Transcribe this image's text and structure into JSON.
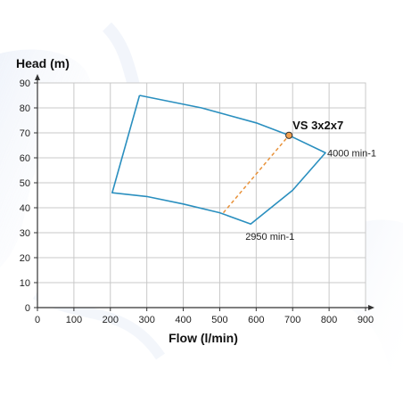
{
  "chart_data": {
    "type": "line",
    "xlabel": "Flow (l/min)",
    "ylabel": "Head (m)",
    "xlim": [
      0,
      900
    ],
    "ylim": [
      0,
      90
    ],
    "xticks": [
      0,
      100,
      200,
      300,
      400,
      500,
      600,
      700,
      800,
      900
    ],
    "yticks": [
      0,
      10,
      20,
      30,
      40,
      50,
      60,
      70,
      80,
      90
    ],
    "grid": true,
    "colors": {
      "envelope": "#2a8fbf",
      "duty": "#e8923a",
      "point_fill": "#f2a150",
      "grid": "#c8c8c8",
      "axis": "#333333"
    },
    "series": [
      {
        "name": "operating-envelope",
        "points": [
          [
            280,
            85
          ],
          [
            450,
            80
          ],
          [
            600,
            74
          ],
          [
            690,
            69
          ],
          [
            790,
            62
          ],
          [
            700,
            47
          ],
          [
            585,
            33.5
          ],
          [
            500,
            38
          ],
          [
            400,
            41.5
          ],
          [
            300,
            44.5
          ],
          [
            205,
            46
          ],
          [
            280,
            85
          ]
        ]
      },
      {
        "name": "duty-line",
        "points": [
          [
            510,
            38
          ],
          [
            690,
            69
          ]
        ]
      }
    ],
    "annotations": [
      {
        "text": "VS 3x2x7",
        "x": 690,
        "y": 69
      },
      {
        "text": "4000 min-1",
        "x": 790,
        "y": 62
      },
      {
        "text": "2950 min-1",
        "x": 585,
        "y": 33.5
      }
    ]
  }
}
